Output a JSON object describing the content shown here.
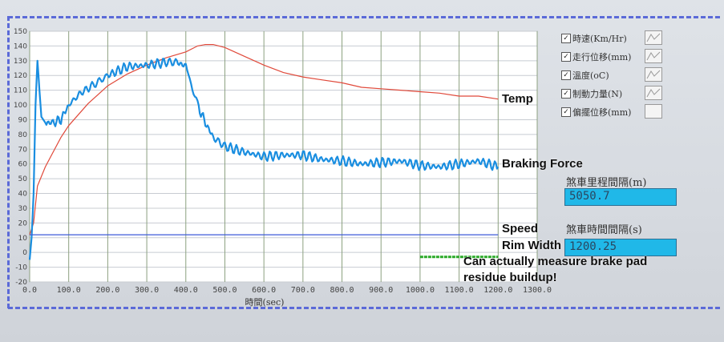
{
  "chart_data": {
    "type": "line",
    "xlabel": "時間(sec)",
    "xlim": [
      0,
      1300
    ],
    "ylim": [
      -20,
      150
    ],
    "x_ticks": [
      "0.0",
      "100.0",
      "200.0",
      "300.0",
      "400.0",
      "500.0",
      "600.0",
      "700.0",
      "800.0",
      "900.0",
      "1000.0",
      "1100.0",
      "1200.0",
      "1300.0"
    ],
    "y_ticks": [
      "150",
      "140",
      "130",
      "120",
      "110",
      "100",
      "90",
      "80",
      "70",
      "60",
      "50",
      "40",
      "30",
      "20",
      "10",
      "0",
      "-10",
      "-20"
    ],
    "grid": true,
    "series": [
      {
        "name": "溫度(oC)",
        "color": "#e0493a",
        "x": [
          0,
          10,
          20,
          40,
          60,
          80,
          100,
          150,
          200,
          250,
          300,
          350,
          400,
          430,
          450,
          470,
          500,
          550,
          600,
          650,
          700,
          750,
          800,
          850,
          900,
          950,
          1000,
          1050,
          1100,
          1150,
          1200
        ],
        "y": [
          12,
          20,
          45,
          58,
          68,
          78,
          86,
          101,
          113,
          121,
          127,
          132,
          136,
          140,
          141,
          141,
          139,
          133,
          127,
          122,
          119,
          117,
          115,
          112,
          111,
          110,
          109,
          108,
          106,
          106,
          104
        ]
      },
      {
        "name": "制動力量(N)",
        "color": "#1a8ee0",
        "x": [
          0,
          5,
          10,
          15,
          20,
          25,
          30,
          40,
          60,
          80,
          100,
          130,
          160,
          200,
          250,
          300,
          350,
          380,
          400,
          410,
          420,
          430,
          450,
          470,
          500,
          550,
          600,
          650,
          700,
          750,
          800,
          850,
          900,
          950,
          1000,
          1050,
          1100,
          1150,
          1200
        ],
        "y": [
          -5,
          10,
          40,
          100,
          130,
          110,
          92,
          88,
          88,
          90,
          100,
          108,
          113,
          120,
          126,
          127,
          129,
          129,
          126,
          118,
          110,
          100,
          88,
          78,
          72,
          68,
          65,
          66,
          66,
          63,
          62,
          60,
          61,
          62,
          59,
          58,
          60,
          62,
          58
        ]
      },
      {
        "name": "時速(Km/Hr)",
        "color": "#3c5ad8",
        "x": [
          0,
          20,
          40,
          100,
          200,
          300,
          400,
          500,
          600,
          700,
          800,
          900,
          1000,
          1100,
          1200
        ],
        "y": [
          12,
          12,
          12,
          12,
          12,
          12,
          12,
          12,
          12,
          12,
          12,
          12,
          12,
          12,
          12
        ]
      },
      {
        "name": "偏擺位移(mm)",
        "color": "#2aaa28",
        "x": [
          1000,
          1040,
          1080,
          1120,
          1160,
          1200
        ],
        "y": [
          -3,
          -3,
          -3,
          -3,
          -3,
          -3
        ]
      }
    ]
  },
  "legend": {
    "items": [
      {
        "label": "時速(Km/Hr)",
        "checked": true
      },
      {
        "label": "走行位移(mm)",
        "checked": true
      },
      {
        "label": "溫度(oC)",
        "checked": true
      },
      {
        "label": "制動力量(N)",
        "checked": true
      },
      {
        "label": "偏擺位移(mm)",
        "checked": true
      }
    ]
  },
  "fields": {
    "distance_label": "煞車里程間隔(m)",
    "distance_value": "5050.7",
    "time_label": "煞車時間間隔(s)",
    "time_value": "1200.25"
  },
  "annotations": {
    "temp": "Temp",
    "braking_force": "Braking Force",
    "speed": "Speed",
    "rim_width": "Rim Width",
    "note_line1": "Can actually measure brake pad",
    "note_line2": "residue buildup!"
  }
}
